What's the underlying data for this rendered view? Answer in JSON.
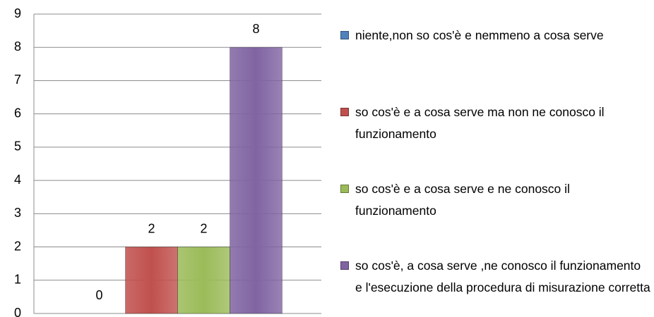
{
  "chart_data": {
    "type": "bar",
    "categories": [
      null
    ],
    "series": [
      {
        "name": "niente,non so cos'è e nemmeno a cosa serve",
        "color": "#4f81bd",
        "values": [
          0
        ]
      },
      {
        "name": "so cos'è e a cosa serve ma non ne conosco il funzionamento",
        "color": "#c0504d",
        "values": [
          2
        ]
      },
      {
        "name": "so cos'è e a cosa serve e ne conosco il funzionamento",
        "color": "#9bbb59",
        "values": [
          2
        ]
      },
      {
        "name": "so cos'è, a cosa serve ,ne conosco il funzionamento e l'esecuzione della procedura di misurazione corretta",
        "color": "#8064a2",
        "values": [
          8
        ]
      }
    ],
    "ylim": [
      0,
      9
    ],
    "yticks": [
      0,
      1,
      2,
      3,
      4,
      5,
      6,
      7,
      8,
      9
    ],
    "grid": true,
    "legend": "right",
    "data_labels": true
  }
}
